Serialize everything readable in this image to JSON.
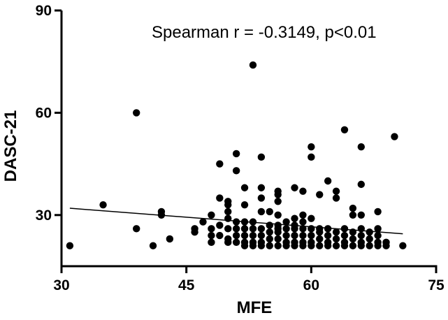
{
  "chart_data": {
    "type": "scatter",
    "title": "",
    "xlabel": "MFE",
    "ylabel": "DASC-21",
    "xlim": [
      30,
      75
    ],
    "ylim": [
      15,
      90
    ],
    "xticks": [
      "30",
      "45",
      "60",
      "75"
    ],
    "yticks": [
      "30",
      "60",
      "90"
    ],
    "xtick_values": [
      30,
      45,
      60,
      75
    ],
    "ytick_values": [
      30,
      60,
      90
    ],
    "annotation": "Spearman r = -0.3149, p<0.01",
    "fit_line": {
      "x": [
        31,
        71
      ],
      "y": [
        32,
        24.5
      ]
    },
    "points": [
      [
        31,
        21
      ],
      [
        35,
        33
      ],
      [
        39,
        60
      ],
      [
        39,
        26
      ],
      [
        41,
        21
      ],
      [
        42,
        31
      ],
      [
        42,
        30
      ],
      [
        43,
        23
      ],
      [
        46,
        26
      ],
      [
        46,
        25
      ],
      [
        47,
        28
      ],
      [
        48,
        30
      ],
      [
        48,
        26
      ],
      [
        48,
        24
      ],
      [
        48,
        22
      ],
      [
        49,
        45
      ],
      [
        49,
        35
      ],
      [
        49,
        27
      ],
      [
        49,
        24
      ],
      [
        50,
        34
      ],
      [
        50,
        33
      ],
      [
        50,
        31
      ],
      [
        50,
        29
      ],
      [
        50,
        26
      ],
      [
        50,
        23
      ],
      [
        50,
        22
      ],
      [
        51,
        48
      ],
      [
        51,
        43
      ],
      [
        51,
        28
      ],
      [
        51,
        26
      ],
      [
        51,
        24
      ],
      [
        51,
        22
      ],
      [
        52,
        38
      ],
      [
        52,
        33
      ],
      [
        52,
        28
      ],
      [
        52,
        26
      ],
      [
        52,
        24
      ],
      [
        52,
        22
      ],
      [
        52,
        21
      ],
      [
        53,
        74
      ],
      [
        53,
        28
      ],
      [
        53,
        26
      ],
      [
        53,
        24
      ],
      [
        53,
        22
      ],
      [
        53,
        21
      ],
      [
        54,
        47
      ],
      [
        54,
        38
      ],
      [
        54,
        35
      ],
      [
        54,
        31
      ],
      [
        54,
        26
      ],
      [
        54,
        24
      ],
      [
        54,
        22
      ],
      [
        54,
        21
      ],
      [
        55,
        31
      ],
      [
        55,
        27
      ],
      [
        55,
        25
      ],
      [
        55,
        23
      ],
      [
        55,
        21
      ],
      [
        56,
        37
      ],
      [
        56,
        36
      ],
      [
        56,
        34
      ],
      [
        56,
        30
      ],
      [
        56,
        27
      ],
      [
        56,
        26
      ],
      [
        56,
        25
      ],
      [
        56,
        23
      ],
      [
        56,
        21
      ],
      [
        57,
        28
      ],
      [
        57,
        26
      ],
      [
        57,
        24
      ],
      [
        57,
        22
      ],
      [
        57,
        21
      ],
      [
        58,
        38
      ],
      [
        58,
        29
      ],
      [
        58,
        27
      ],
      [
        58,
        26
      ],
      [
        58,
        24
      ],
      [
        58,
        22
      ],
      [
        58,
        21
      ],
      [
        59,
        37
      ],
      [
        59,
        30
      ],
      [
        59,
        28
      ],
      [
        59,
        26
      ],
      [
        59,
        24
      ],
      [
        59,
        22
      ],
      [
        59,
        21
      ],
      [
        60,
        50
      ],
      [
        60,
        47
      ],
      [
        60,
        29
      ],
      [
        60,
        26
      ],
      [
        60,
        24
      ],
      [
        60,
        22
      ],
      [
        60,
        21
      ],
      [
        61,
        36
      ],
      [
        61,
        26
      ],
      [
        61,
        25
      ],
      [
        61,
        23
      ],
      [
        61,
        21
      ],
      [
        62,
        40
      ],
      [
        62,
        26
      ],
      [
        62,
        24
      ],
      [
        62,
        22
      ],
      [
        62,
        21
      ],
      [
        63,
        37
      ],
      [
        63,
        35
      ],
      [
        63,
        25
      ],
      [
        63,
        23
      ],
      [
        63,
        21
      ],
      [
        64,
        55
      ],
      [
        64,
        26
      ],
      [
        64,
        24
      ],
      [
        64,
        22
      ],
      [
        64,
        21
      ],
      [
        65,
        32
      ],
      [
        65,
        30
      ],
      [
        65,
        25
      ],
      [
        65,
        23
      ],
      [
        65,
        21
      ],
      [
        66,
        50
      ],
      [
        66,
        39
      ],
      [
        66,
        30
      ],
      [
        66,
        26
      ],
      [
        66,
        24
      ],
      [
        66,
        22
      ],
      [
        66,
        21
      ],
      [
        67,
        25
      ],
      [
        67,
        23
      ],
      [
        67,
        21
      ],
      [
        68,
        31
      ],
      [
        68,
        26
      ],
      [
        68,
        24
      ],
      [
        68,
        22
      ],
      [
        68,
        21
      ],
      [
        69,
        22
      ],
      [
        69,
        21
      ],
      [
        70,
        53
      ],
      [
        71,
        21
      ]
    ]
  }
}
